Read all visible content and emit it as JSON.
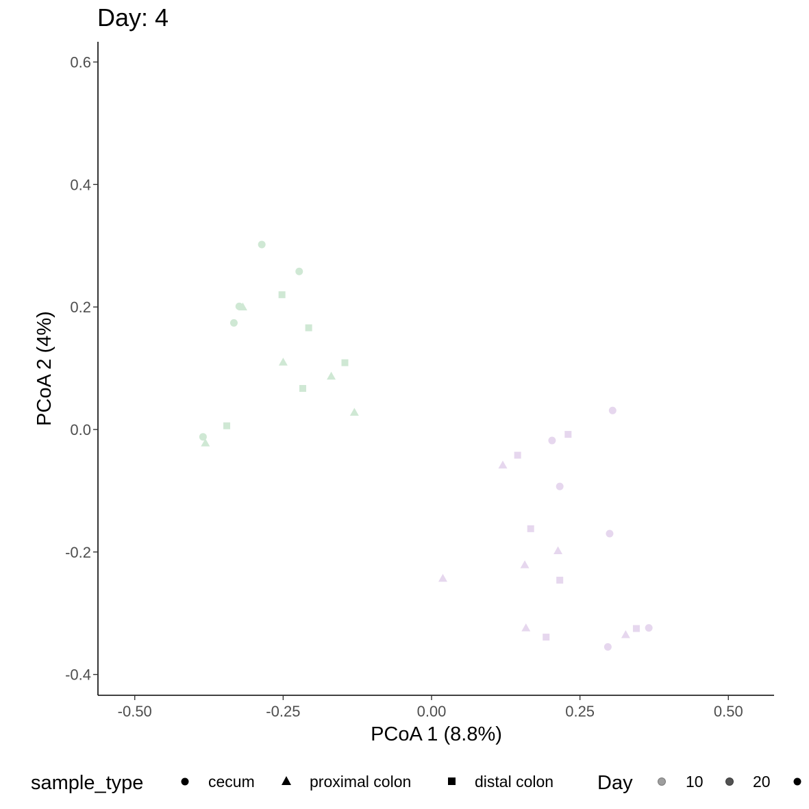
{
  "chart_data": {
    "type": "scatter",
    "title": "Day: 4",
    "xlabel": "PCoA 1 (8.8%)",
    "ylabel": "PCoA 2 (4%)",
    "xlim": [
      -0.562,
      0.577
    ],
    "ylim": [
      -0.434,
      0.633
    ],
    "x_ticks": [
      -0.5,
      -0.25,
      0.0,
      0.25,
      0.5
    ],
    "x_tick_labels": [
      "-0.50",
      "-0.25",
      "0.00",
      "0.25",
      "0.50"
    ],
    "y_ticks": [
      -0.4,
      -0.2,
      0.0,
      0.2,
      0.4,
      0.6
    ],
    "y_tick_labels": [
      "-0.4",
      "-0.2",
      "0.0",
      "0.2",
      "0.4",
      "0.6"
    ],
    "grid": false,
    "legend_position": "bottom",
    "group_colors": [
      "#cfe8d4",
      "#e6d7ee"
    ],
    "points": [
      {
        "x": -0.286,
        "y": 0.302,
        "shape": "circle",
        "group": 0
      },
      {
        "x": -0.223,
        "y": 0.258,
        "shape": "circle",
        "group": 0
      },
      {
        "x": -0.324,
        "y": 0.201,
        "shape": "circle",
        "group": 0
      },
      {
        "x": -0.333,
        "y": 0.174,
        "shape": "circle",
        "group": 0
      },
      {
        "x": -0.385,
        "y": -0.012,
        "shape": "circle",
        "group": 0
      },
      {
        "x": -0.318,
        "y": 0.2,
        "shape": "triangle",
        "group": 0
      },
      {
        "x": -0.25,
        "y": 0.11,
        "shape": "triangle",
        "group": 0
      },
      {
        "x": -0.169,
        "y": 0.087,
        "shape": "triangle",
        "group": 0
      },
      {
        "x": -0.13,
        "y": 0.028,
        "shape": "triangle",
        "group": 0
      },
      {
        "x": -0.381,
        "y": -0.022,
        "shape": "triangle",
        "group": 0
      },
      {
        "x": -0.252,
        "y": 0.22,
        "shape": "square",
        "group": 0
      },
      {
        "x": -0.207,
        "y": 0.166,
        "shape": "square",
        "group": 0
      },
      {
        "x": -0.146,
        "y": 0.109,
        "shape": "square",
        "group": 0
      },
      {
        "x": -0.217,
        "y": 0.067,
        "shape": "square",
        "group": 0
      },
      {
        "x": -0.345,
        "y": 0.006,
        "shape": "square",
        "group": 0
      },
      {
        "x": 0.305,
        "y": 0.031,
        "shape": "circle",
        "group": 1
      },
      {
        "x": 0.203,
        "y": -0.018,
        "shape": "circle",
        "group": 1
      },
      {
        "x": 0.216,
        "y": -0.093,
        "shape": "circle",
        "group": 1
      },
      {
        "x": 0.3,
        "y": -0.17,
        "shape": "circle",
        "group": 1
      },
      {
        "x": 0.297,
        "y": -0.355,
        "shape": "circle",
        "group": 1
      },
      {
        "x": 0.366,
        "y": -0.324,
        "shape": "circle",
        "group": 1
      },
      {
        "x": 0.12,
        "y": -0.058,
        "shape": "triangle",
        "group": 1
      },
      {
        "x": 0.213,
        "y": -0.198,
        "shape": "triangle",
        "group": 1
      },
      {
        "x": 0.157,
        "y": -0.221,
        "shape": "triangle",
        "group": 1
      },
      {
        "x": 0.019,
        "y": -0.243,
        "shape": "triangle",
        "group": 1
      },
      {
        "x": 0.159,
        "y": -0.324,
        "shape": "triangle",
        "group": 1
      },
      {
        "x": 0.327,
        "y": -0.335,
        "shape": "triangle",
        "group": 1
      },
      {
        "x": 0.23,
        "y": -0.008,
        "shape": "square",
        "group": 1
      },
      {
        "x": 0.145,
        "y": -0.042,
        "shape": "square",
        "group": 1
      },
      {
        "x": 0.167,
        "y": -0.162,
        "shape": "square",
        "group": 1
      },
      {
        "x": 0.216,
        "y": -0.246,
        "shape": "square",
        "group": 1
      },
      {
        "x": 0.193,
        "y": -0.339,
        "shape": "square",
        "group": 1
      },
      {
        "x": 0.345,
        "y": -0.325,
        "shape": "square",
        "group": 1
      }
    ],
    "legend": {
      "shape_title": "sample_type",
      "shape_items": [
        {
          "label": "cecum",
          "shape": "circle"
        },
        {
          "label": "proximal colon",
          "shape": "triangle"
        },
        {
          "label": "distal colon",
          "shape": "square"
        }
      ],
      "alpha_title": "Day",
      "alpha_items": [
        {
          "label": "10",
          "color": "#9e9e9e"
        },
        {
          "label": "20",
          "color": "#525252"
        },
        {
          "label": "",
          "color": "#000000"
        }
      ]
    }
  }
}
